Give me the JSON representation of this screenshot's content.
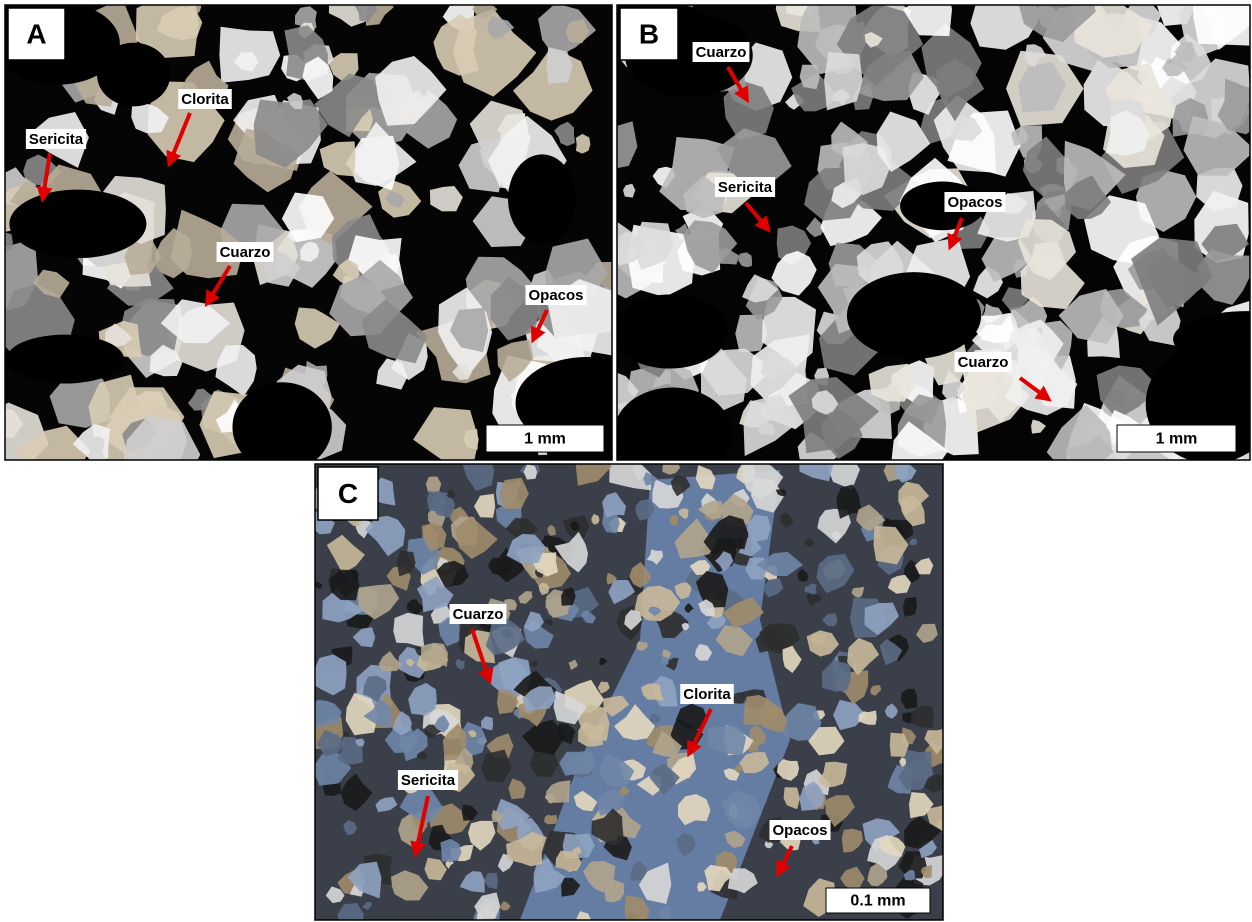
{
  "panels": [
    {
      "letter": "A",
      "scale_bar": "1 mm",
      "labels": [
        "Clorita",
        "Sericita",
        "Cuarzo",
        "Opacos"
      ]
    },
    {
      "letter": "B",
      "scale_bar": "1 mm",
      "labels": [
        "Cuarzo",
        "Sericita",
        "Opacos",
        "Cuarzo"
      ]
    },
    {
      "letter": "C",
      "scale_bar": "0.1 mm",
      "labels": [
        "Cuarzo",
        "Clorita",
        "Sericita",
        "Opacos"
      ]
    }
  ]
}
